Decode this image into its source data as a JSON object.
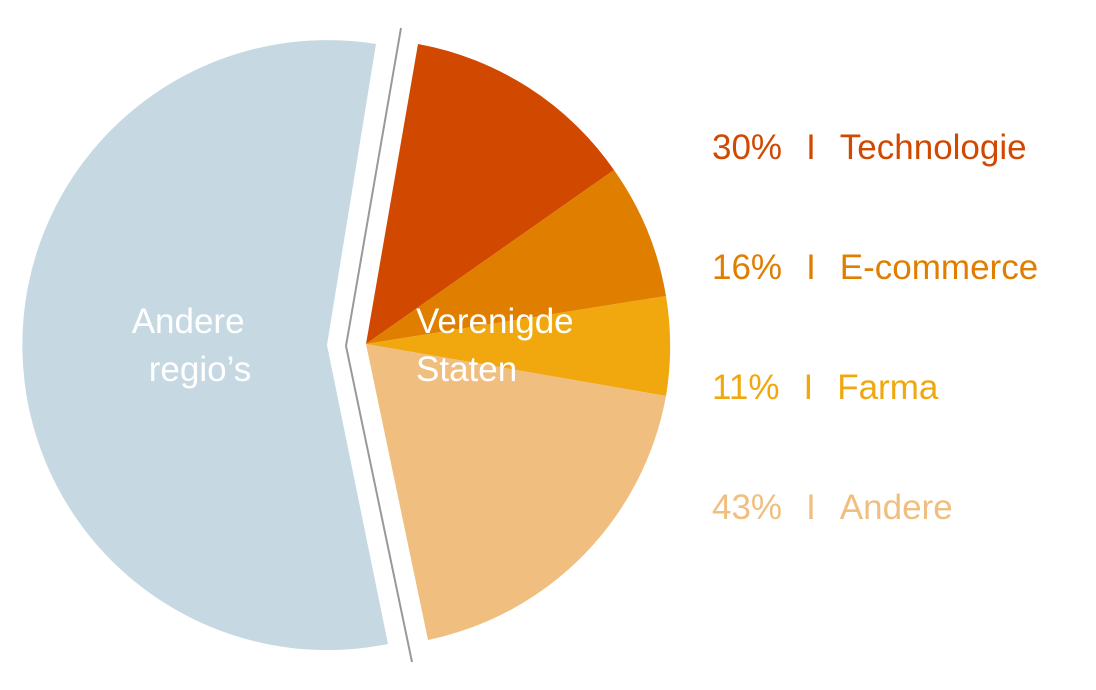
{
  "chart_data": {
    "type": "pie",
    "title": "",
    "groups": [
      {
        "name": "Andere regio's",
        "label_lines": [
          "Andere",
          "regio’s"
        ],
        "color": "#c6d9e3"
      },
      {
        "name": "Verenigde Staten",
        "label_lines": [
          "Verenigde",
          "Staten"
        ],
        "slices": [
          {
            "label": "Technologie",
            "value": 30,
            "value_text": "30%",
            "color": "#d14900"
          },
          {
            "label": "E-commerce",
            "value": 16,
            "value_text": "16%",
            "color": "#e07e00"
          },
          {
            "label": "Farma",
            "value": 11,
            "value_text": "11%",
            "color": "#f1a80f"
          },
          {
            "label": "Andere",
            "value": 43,
            "value_text": "43%",
            "color": "#f0bf80"
          }
        ]
      }
    ],
    "legend": {
      "placement": "right",
      "separator": "I"
    },
    "exploded_divider_color": "#999999"
  }
}
